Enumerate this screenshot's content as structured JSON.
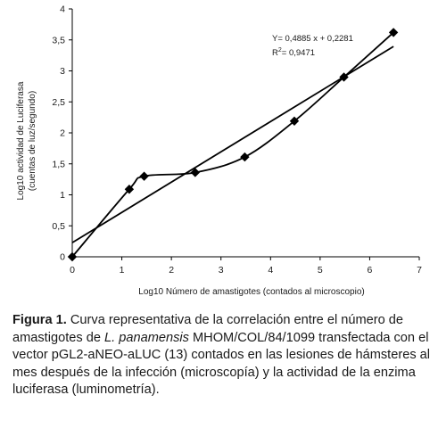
{
  "chart_data": {
    "type": "scatter",
    "title": "",
    "xlabel": "Log10 Número de amastigotes (contados al microscopio)",
    "ylabel_lines": [
      "Log10 actividad de Luciferasa",
      "(cuentas de luz/segundo)"
    ],
    "xlim": [
      0,
      7
    ],
    "ylim": [
      0,
      4
    ],
    "x_ticks": [
      0,
      1,
      2,
      3,
      4,
      5,
      6,
      7
    ],
    "y_ticks": [
      0,
      0.5,
      1,
      1.5,
      2,
      2.5,
      3,
      3.5,
      4
    ],
    "y_tick_labels": [
      "0",
      "0,5",
      "1",
      "1,5",
      "2",
      "2,5",
      "3",
      "3,5",
      "4"
    ],
    "grid": false,
    "series": [
      {
        "points": [
          {
            "x": 0,
            "y": 0
          },
          {
            "x": 1.15,
            "y": 1.09
          },
          {
            "x": 1.45,
            "y": 1.3
          },
          {
            "x": 2.48,
            "y": 1.36
          },
          {
            "x": 3.48,
            "y": 1.61
          },
          {
            "x": 4.48,
            "y": 2.19
          },
          {
            "x": 5.48,
            "y": 2.9
          },
          {
            "x": 6.48,
            "y": 3.62
          }
        ],
        "marker": "diamond"
      }
    ],
    "trendline": {
      "slope": 0.4885,
      "intercept": 0.2281,
      "equation": "Y= 0,4885 x + 0,2281",
      "r2_prefix": "R",
      "r2_sup": "2",
      "r2_value": "= 0,9471"
    },
    "colors": {
      "line": "#000000",
      "text": "#1a1a1a"
    }
  },
  "caption": {
    "label": "Figura 1.",
    "text1": " Curva representativa de la correlación entre el número de amastigotes de ",
    "species": "L. panamensis",
    "text2": " MHOM/COL/84/1099 transfectada con el vector pGL2-aNEO-aLUC (13) contados en las lesiones de hámsteres al mes después de la infección (microscopía) y la actividad de la enzima luciferasa (luminometría)."
  }
}
